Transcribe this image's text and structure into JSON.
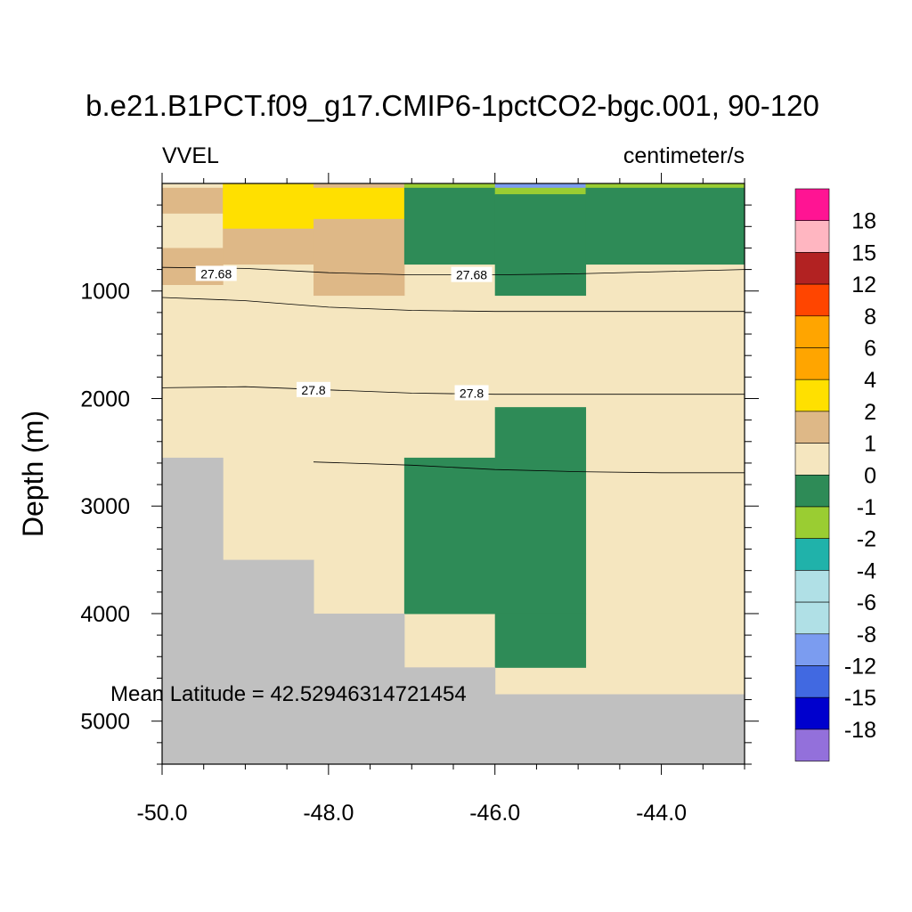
{
  "chart_data": {
    "type": "heatmap",
    "title": "b.e21.B1PCT.f09_g17.CMIP6-1pctCO2-bgc.001, 90-120",
    "left_label": "VVEL",
    "right_label": "centimeter/s",
    "ylabel": "Depth (m)",
    "xlabel": "",
    "xlim": [
      -50.0,
      -43.0
    ],
    "ylim": [
      5400,
      0
    ],
    "x_ticks": [
      -50.0,
      -48.0,
      -46.0,
      -44.0
    ],
    "x_tick_labels": [
      "-50.0",
      "-48.0",
      "-46.0",
      "-44.0"
    ],
    "y_ticks": [
      1000,
      2000,
      3000,
      4000,
      5000
    ],
    "y_tick_labels": [
      "1000",
      "2000",
      "3000",
      "4000",
      "5000"
    ],
    "annotation": "Mean Latitude = 42.52946314721454",
    "colorbar": {
      "labels": [
        "18",
        "15",
        "12",
        "8",
        "6",
        "4",
        "2",
        "1",
        "0",
        "-1",
        "-2",
        "-4",
        "-6",
        "-8",
        "-12",
        "-15",
        "-18"
      ],
      "colors": [
        "#ff1493",
        "#ffb6c1",
        "#b22222",
        "#ff4500",
        "#ffa500",
        "#ffa500",
        "#ffe000",
        "#deb887",
        "#f5e6bf",
        "#2e8b57",
        "#9acd32",
        "#20b2aa",
        "#b0e0e6",
        "#b0e0e6",
        "#7b9cf0",
        "#4169e1",
        "#0000cd",
        "#9370db"
      ]
    },
    "cells": [
      {
        "x0": -50.0,
        "x1": -49.27,
        "y0": 0,
        "y1": 40,
        "color": "#f5e6bf"
      },
      {
        "x0": -49.27,
        "x1": -48.18,
        "y0": 0,
        "y1": 40,
        "color": "#ffe000"
      },
      {
        "x0": -48.18,
        "x1": -47.09,
        "y0": 0,
        "y1": 40,
        "color": "#deb887"
      },
      {
        "x0": -47.09,
        "x1": -46.0,
        "y0": 0,
        "y1": 40,
        "color": "#9acd32"
      },
      {
        "x0": -46.0,
        "x1": -44.91,
        "y0": 0,
        "y1": 40,
        "color": "#7b9cf0"
      },
      {
        "x0": -44.91,
        "x1": -43.0,
        "y0": 0,
        "y1": 40,
        "color": "#9acd32"
      },
      {
        "x0": -50.0,
        "x1": -49.27,
        "y0": 40,
        "y1": 280,
        "color": "#deb887"
      },
      {
        "x0": -50.0,
        "x1": -49.27,
        "y0": 280,
        "y1": 600,
        "color": "#f5e6bf"
      },
      {
        "x0": -50.0,
        "x1": -49.27,
        "y0": 600,
        "y1": 940,
        "color": "#deb887"
      },
      {
        "x0": -49.27,
        "x1": -48.18,
        "y0": 40,
        "y1": 420,
        "color": "#ffe000"
      },
      {
        "x0": -49.27,
        "x1": -48.18,
        "y0": 420,
        "y1": 750,
        "color": "#deb887"
      },
      {
        "x0": -48.18,
        "x1": -47.09,
        "y0": 40,
        "y1": 330,
        "color": "#ffe000"
      },
      {
        "x0": -48.18,
        "x1": -47.09,
        "y0": 330,
        "y1": 1040,
        "color": "#deb887"
      },
      {
        "x0": -47.09,
        "x1": -46.0,
        "y0": 40,
        "y1": 750,
        "color": "#2e8b57"
      },
      {
        "x0": -46.0,
        "x1": -44.91,
        "y0": 40,
        "y1": 100,
        "color": "#9acd32"
      },
      {
        "x0": -46.0,
        "x1": -44.91,
        "y0": 100,
        "y1": 1040,
        "color": "#2e8b57"
      },
      {
        "x0": -44.91,
        "x1": -43.0,
        "y0": 40,
        "y1": 750,
        "color": "#2e8b57"
      },
      {
        "x0": -46.0,
        "x1": -44.91,
        "y0": 2080,
        "y1": 2550,
        "color": "#2e8b57"
      },
      {
        "x0": -47.09,
        "x1": -44.91,
        "y0": 2550,
        "y1": 4000,
        "color": "#2e8b57"
      },
      {
        "x0": -46.0,
        "x1": -44.91,
        "y0": 4000,
        "y1": 4500,
        "color": "#2e8b57"
      },
      {
        "x0": -50.0,
        "x1": -49.27,
        "y0": 2550,
        "y1": 5400,
        "color": "#c0c0c0"
      },
      {
        "x0": -49.27,
        "x1": -48.18,
        "y0": 3500,
        "y1": 5400,
        "color": "#c0c0c0"
      },
      {
        "x0": -48.18,
        "x1": -47.09,
        "y0": 4000,
        "y1": 5400,
        "color": "#c0c0c0"
      },
      {
        "x0": -47.09,
        "x1": -46.0,
        "y0": 4500,
        "y1": 5400,
        "color": "#c0c0c0"
      },
      {
        "x0": -46.0,
        "x1": -43.0,
        "y0": 4750,
        "y1": 5400,
        "color": "#c0c0c0"
      }
    ],
    "contours": [
      {
        "points": [
          [
            -50.0,
            780
          ],
          [
            -49.0,
            790
          ],
          [
            -48.0,
            830
          ],
          [
            -47.0,
            850
          ],
          [
            -46.0,
            850
          ],
          [
            -45.0,
            840
          ],
          [
            -44.0,
            820
          ],
          [
            -43.0,
            800
          ]
        ],
        "label": "27.68",
        "label_positions": [
          [
            -49.35,
            840
          ],
          [
            -46.28,
            850
          ]
        ]
      },
      {
        "points": [
          [
            -50.0,
            1060
          ],
          [
            -49.0,
            1090
          ],
          [
            -48.0,
            1150
          ],
          [
            -47.0,
            1180
          ],
          [
            -46.0,
            1190
          ],
          [
            -45.0,
            1190
          ],
          [
            -44.0,
            1190
          ],
          [
            -43.0,
            1190
          ]
        ],
        "label": "",
        "label_positions": []
      },
      {
        "points": [
          [
            -50.0,
            1900
          ],
          [
            -49.0,
            1890
          ],
          [
            -48.0,
            1920
          ],
          [
            -47.0,
            1950
          ],
          [
            -46.0,
            1960
          ],
          [
            -45.0,
            1960
          ],
          [
            -44.0,
            1960
          ],
          [
            -43.0,
            1960
          ]
        ],
        "label": "27.8",
        "label_positions": [
          [
            -48.18,
            1920
          ],
          [
            -46.28,
            1950
          ]
        ]
      },
      {
        "points": [
          [
            -48.18,
            2590
          ],
          [
            -47.0,
            2620
          ],
          [
            -46.0,
            2660
          ],
          [
            -45.0,
            2680
          ],
          [
            -44.0,
            2690
          ],
          [
            -43.0,
            2690
          ]
        ],
        "label": "",
        "label_positions": []
      }
    ]
  }
}
